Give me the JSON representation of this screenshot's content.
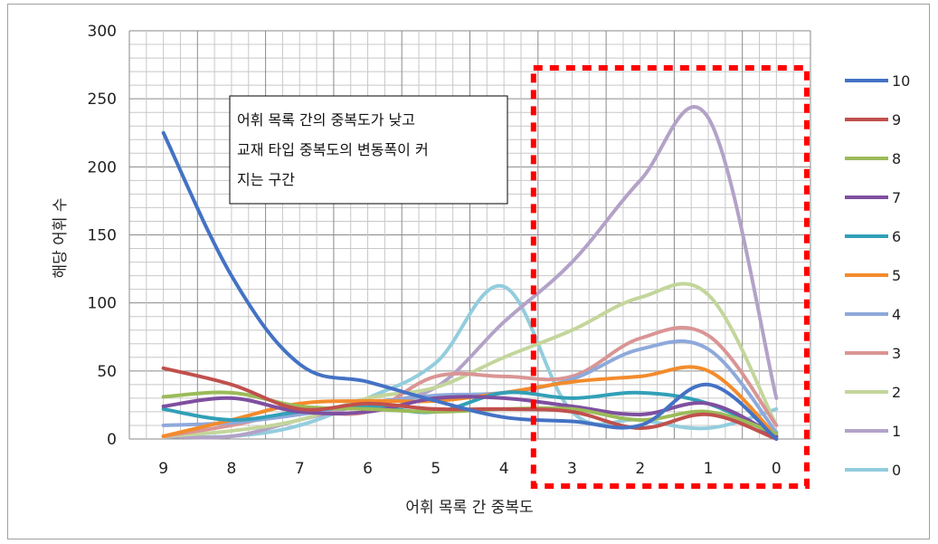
{
  "chart_data": {
    "type": "line",
    "x": [
      "9",
      "8",
      "7",
      "6",
      "5",
      "4",
      "3",
      "2",
      "1",
      "0"
    ],
    "xlabel": "어휘 목록 간 중복도",
    "ylabel": "해당 어휘 수",
    "ylim": [
      0,
      300
    ],
    "yticks": [
      0,
      50,
      100,
      150,
      200,
      250,
      300
    ],
    "grid": true,
    "legend_position": "right",
    "series": [
      {
        "name": "10",
        "color": "#4472C4",
        "values": [
          225,
          120,
          55,
          42,
          28,
          16,
          13,
          10,
          40,
          0
        ]
      },
      {
        "name": "9",
        "color": "#C0504D",
        "values": [
          52,
          40,
          22,
          26,
          22,
          22,
          20,
          8,
          18,
          0
        ]
      },
      {
        "name": "8",
        "color": "#9BBB59",
        "values": [
          31,
          34,
          24,
          22,
          20,
          22,
          22,
          14,
          20,
          4
        ]
      },
      {
        "name": "7",
        "color": "#7F4F9F",
        "values": [
          24,
          30,
          20,
          20,
          30,
          30,
          24,
          18,
          26,
          2
        ]
      },
      {
        "name": "6",
        "color": "#31A0B7",
        "values": [
          22,
          14,
          20,
          24,
          20,
          34,
          30,
          34,
          26,
          2
        ]
      },
      {
        "name": "5",
        "color": "#F38B2C",
        "values": [
          2,
          14,
          26,
          28,
          28,
          34,
          42,
          46,
          50,
          2
        ]
      },
      {
        "name": "4",
        "color": "#8EA9DB",
        "values": [
          10,
          12,
          18,
          26,
          32,
          34,
          44,
          66,
          66,
          5
        ]
      },
      {
        "name": "3",
        "color": "#D99594",
        "values": [
          2,
          10,
          20,
          20,
          46,
          46,
          46,
          74,
          76,
          10
        ]
      },
      {
        "name": "2",
        "color": "#C3D69B",
        "values": [
          2,
          6,
          14,
          30,
          38,
          60,
          80,
          104,
          106,
          10
        ]
      },
      {
        "name": "1",
        "color": "#B3A2C7",
        "values": [
          2,
          2,
          14,
          26,
          38,
          86,
          130,
          190,
          236,
          30
        ]
      },
      {
        "name": "0",
        "color": "#93CDDD",
        "values": [
          2,
          2,
          10,
          30,
          56,
          112,
          20,
          14,
          8,
          22
        ]
      }
    ],
    "annotation": {
      "lines": [
        "어휘 목록 간의 중복도가 낮고",
        "교재 타입 중복도의 변동폭이 커",
        "지는 구간"
      ]
    },
    "highlight_color": "#FF0000"
  }
}
